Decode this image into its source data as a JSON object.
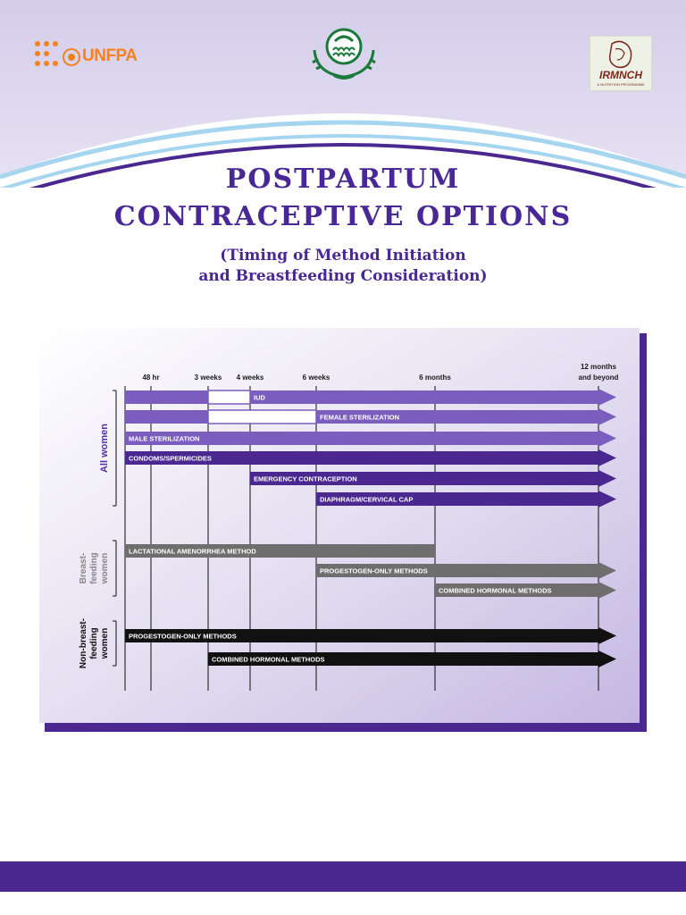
{
  "header": {
    "title_line1": "POSTPARTUM",
    "title_line2": "CONTRACEPTIVE OPTIONS",
    "subtitle_line1": "(Timing of Method Initiation",
    "subtitle_line2": "and Breastfeeding Consideration)"
  },
  "logos": {
    "left_text": "UNFPA",
    "right_text": "IRMNCH",
    "right_subtext": "& NUTRITION PROGRAMME"
  },
  "colors": {
    "brand_purple": "#4b2790",
    "title_purple": "#4a2796",
    "light_purple": "#7a5dbd",
    "mid_gray": "#6e6e6e",
    "black_bar": "#111111",
    "unfpa_orange": "#f58220",
    "logo_green": "#1a7a3a"
  },
  "chart_data": {
    "type": "gantt",
    "time_axis": [
      {
        "id": "t0",
        "label": ""
      },
      {
        "id": "t48h",
        "label": "48 hr"
      },
      {
        "id": "t3w",
        "label": "3 weeks"
      },
      {
        "id": "t4w",
        "label": "4 weeks"
      },
      {
        "id": "t6w",
        "label": "6 weeks"
      },
      {
        "id": "t6m",
        "label": "6 months"
      },
      {
        "id": "t12m",
        "label": "12 months and beyond"
      }
    ],
    "groups": [
      {
        "id": "all",
        "label": "All women",
        "rows": [
          {
            "label": "IUD",
            "segments": [
              {
                "from": "t0",
                "to": "t3w"
              },
              {
                "from": "t4w",
                "to": "t12m"
              }
            ],
            "gap": [
              "t3w",
              "t4w"
            ],
            "label_at": "t4w",
            "arrow": true,
            "color": "#7a5dbd"
          },
          {
            "label": "FEMALE STERILIZATION",
            "segments": [
              {
                "from": "t0",
                "to": "t3w"
              },
              {
                "from": "t6w",
                "to": "t12m"
              }
            ],
            "gap": [
              "t3w",
              "t6w"
            ],
            "label_at": "t6w",
            "arrow": true,
            "color": "#7a5dbd"
          },
          {
            "label": "MALE STERILIZATION",
            "segments": [
              {
                "from": "t0",
                "to": "t12m"
              }
            ],
            "label_at": "t0",
            "arrow": true,
            "color": "#7a5dbd"
          },
          {
            "label": "CONDOMS/SPERMICIDES",
            "segments": [
              {
                "from": "t0",
                "to": "t12m"
              }
            ],
            "label_at": "t0",
            "arrow": true,
            "color": "#4b2790"
          },
          {
            "label": "EMERGENCY CONTRACEPTION",
            "segments": [
              {
                "from": "t4w",
                "to": "t12m"
              }
            ],
            "label_at": "t4w",
            "arrow": true,
            "color": "#4b2790"
          },
          {
            "label": "DIAPHRAGM/CERVICAL CAP",
            "segments": [
              {
                "from": "t6w",
                "to": "t12m"
              }
            ],
            "label_at": "t6w",
            "arrow": true,
            "color": "#4b2790"
          }
        ]
      },
      {
        "id": "bf",
        "label": "Breast-feeding women",
        "label_lines": [
          "Breast-",
          "feeding",
          "women"
        ],
        "rows": [
          {
            "label": "LACTATIONAL AMENORRHEA METHOD",
            "segments": [
              {
                "from": "t0",
                "to": "t6m"
              }
            ],
            "label_at": "t0",
            "arrow": false,
            "color": "#6e6e6e"
          },
          {
            "label": "PROGESTOGEN-ONLY METHODS",
            "segments": [
              {
                "from": "t6w",
                "to": "t12m"
              }
            ],
            "label_at": "t6w",
            "arrow": true,
            "color": "#6e6e6e"
          },
          {
            "label": "COMBINED HORMONAL METHODS",
            "segments": [
              {
                "from": "t6m",
                "to": "t12m"
              }
            ],
            "label_at": "t6m",
            "arrow": true,
            "color": "#6e6e6e"
          }
        ]
      },
      {
        "id": "nbf",
        "label": "Non-breast-feeding women",
        "label_lines": [
          "Non-breast-",
          "feeding",
          "women"
        ],
        "rows": [
          {
            "label": "PROGESTOGEN-ONLY METHODS",
            "segments": [
              {
                "from": "t0",
                "to": "t12m"
              }
            ],
            "label_at": "t0",
            "arrow": true,
            "color": "#111111"
          },
          {
            "label": "COMBINED HORMONAL METHODS",
            "segments": [
              {
                "from": "t3w",
                "to": "t12m"
              }
            ],
            "label_at": "t3w",
            "arrow": true,
            "color": "#111111"
          }
        ]
      }
    ]
  }
}
